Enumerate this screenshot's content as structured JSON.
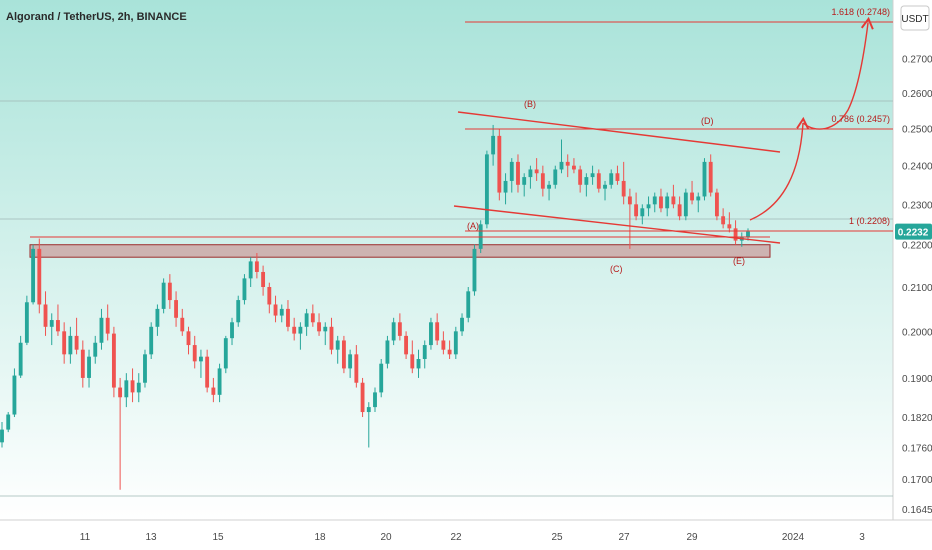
{
  "chart_data": {
    "type": "candlestick",
    "title": "Algorand / TetherUS, 2h, BINANCE",
    "unit": "USDT",
    "ylim": [
      0.1625,
      0.288
    ],
    "y_scale": "log",
    "y_ticks": [
      "0.2700",
      "0.2600",
      "0.2500",
      "0.2400",
      "0.2300",
      "0.2200",
      "0.2100",
      "0.2000",
      "0.1900",
      "0.1820",
      "0.1760",
      "0.1700",
      "0.1645"
    ],
    "x_ticks": [
      "11",
      "13",
      "15",
      "18",
      "20",
      "22",
      "25",
      "27",
      "29",
      "2024",
      "3"
    ],
    "current_price": "0.2232",
    "fib_levels": [
      {
        "label": "1.618 (0.2748)",
        "value": 0.2748
      },
      {
        "label": "0.786 (0.2457)",
        "value": 0.2457
      },
      {
        "label": "1 (0.2208)",
        "value": 0.2208
      }
    ],
    "wave_labels": [
      "(A)",
      "(B)",
      "(C)",
      "(D)",
      "(E)"
    ],
    "support_zone": [
      0.217,
      0.22
    ],
    "colors": {
      "up": "#26a69a",
      "down": "#ef5350",
      "annotation": "#e53935",
      "zone": "#c98a8a",
      "background_top": "#a9e3d9",
      "background_bottom": "#ffffff"
    },
    "candles": [
      [
        0.177,
        0.181,
        0.176,
        0.1795
      ],
      [
        0.1795,
        0.183,
        0.179,
        0.1825
      ],
      [
        0.1825,
        0.192,
        0.182,
        0.1905
      ],
      [
        0.1905,
        0.199,
        0.19,
        0.1975
      ],
      [
        0.1975,
        0.208,
        0.197,
        0.2065
      ],
      [
        0.2065,
        0.22,
        0.206,
        0.219
      ],
      [
        0.219,
        0.2215,
        0.204,
        0.206
      ],
      [
        0.206,
        0.209,
        0.199,
        0.201
      ],
      [
        0.201,
        0.204,
        0.197,
        0.2025
      ],
      [
        0.2025,
        0.206,
        0.199,
        0.2
      ],
      [
        0.2,
        0.202,
        0.193,
        0.195
      ],
      [
        0.195,
        0.201,
        0.193,
        0.199
      ],
      [
        0.199,
        0.203,
        0.195,
        0.196
      ],
      [
        0.196,
        0.198,
        0.188,
        0.19
      ],
      [
        0.19,
        0.196,
        0.188,
        0.1945
      ],
      [
        0.1945,
        0.199,
        0.193,
        0.1975
      ],
      [
        0.1975,
        0.205,
        0.196,
        0.203
      ],
      [
        0.203,
        0.206,
        0.198,
        0.1995
      ],
      [
        0.1995,
        0.201,
        0.186,
        0.188
      ],
      [
        0.188,
        0.19,
        0.168,
        0.186
      ],
      [
        0.186,
        0.191,
        0.184,
        0.1895
      ],
      [
        0.1895,
        0.192,
        0.185,
        0.187
      ],
      [
        0.187,
        0.191,
        0.185,
        0.189
      ],
      [
        0.189,
        0.196,
        0.188,
        0.195
      ],
      [
        0.195,
        0.202,
        0.194,
        0.201
      ],
      [
        0.201,
        0.206,
        0.199,
        0.205
      ],
      [
        0.205,
        0.212,
        0.204,
        0.211
      ],
      [
        0.211,
        0.213,
        0.205,
        0.207
      ],
      [
        0.207,
        0.209,
        0.201,
        0.203
      ],
      [
        0.203,
        0.205,
        0.199,
        0.2
      ],
      [
        0.2,
        0.201,
        0.195,
        0.197
      ],
      [
        0.197,
        0.199,
        0.192,
        0.1935
      ],
      [
        0.1935,
        0.196,
        0.19,
        0.1945
      ],
      [
        0.1945,
        0.196,
        0.187,
        0.188
      ],
      [
        0.188,
        0.19,
        0.185,
        0.1865
      ],
      [
        0.1865,
        0.193,
        0.185,
        0.192
      ],
      [
        0.192,
        0.199,
        0.191,
        0.1985
      ],
      [
        0.1985,
        0.203,
        0.197,
        0.202
      ],
      [
        0.202,
        0.208,
        0.201,
        0.207
      ],
      [
        0.207,
        0.213,
        0.206,
        0.212
      ],
      [
        0.212,
        0.217,
        0.21,
        0.216
      ],
      [
        0.216,
        0.218,
        0.212,
        0.2135
      ],
      [
        0.2135,
        0.215,
        0.208,
        0.21
      ],
      [
        0.21,
        0.211,
        0.204,
        0.206
      ],
      [
        0.206,
        0.208,
        0.202,
        0.2035
      ],
      [
        0.2035,
        0.206,
        0.202,
        0.205
      ],
      [
        0.205,
        0.207,
        0.2,
        0.201
      ],
      [
        0.201,
        0.203,
        0.198,
        0.1995
      ],
      [
        0.1995,
        0.202,
        0.196,
        0.201
      ],
      [
        0.201,
        0.205,
        0.199,
        0.204
      ],
      [
        0.204,
        0.206,
        0.201,
        0.202
      ],
      [
        0.202,
        0.204,
        0.199,
        0.2
      ],
      [
        0.2,
        0.202,
        0.197,
        0.201
      ],
      [
        0.201,
        0.203,
        0.195,
        0.196
      ],
      [
        0.196,
        0.199,
        0.193,
        0.198
      ],
      [
        0.198,
        0.199,
        0.191,
        0.192
      ],
      [
        0.192,
        0.196,
        0.19,
        0.195
      ],
      [
        0.195,
        0.197,
        0.188,
        0.189
      ],
      [
        0.189,
        0.19,
        0.182,
        0.183
      ],
      [
        0.183,
        0.185,
        0.176,
        0.184
      ],
      [
        0.184,
        0.188,
        0.183,
        0.187
      ],
      [
        0.187,
        0.194,
        0.186,
        0.193
      ],
      [
        0.193,
        0.199,
        0.192,
        0.198
      ],
      [
        0.198,
        0.203,
        0.197,
        0.202
      ],
      [
        0.202,
        0.204,
        0.198,
        0.199
      ],
      [
        0.199,
        0.2,
        0.194,
        0.195
      ],
      [
        0.195,
        0.198,
        0.191,
        0.192
      ],
      [
        0.192,
        0.196,
        0.19,
        0.194
      ],
      [
        0.194,
        0.198,
        0.192,
        0.197
      ],
      [
        0.197,
        0.203,
        0.196,
        0.202
      ],
      [
        0.202,
        0.204,
        0.197,
        0.198
      ],
      [
        0.198,
        0.2,
        0.195,
        0.196
      ],
      [
        0.196,
        0.198,
        0.194,
        0.195
      ],
      [
        0.195,
        0.201,
        0.194,
        0.2
      ],
      [
        0.2,
        0.204,
        0.199,
        0.203
      ],
      [
        0.203,
        0.21,
        0.202,
        0.209
      ],
      [
        0.209,
        0.22,
        0.208,
        0.219
      ],
      [
        0.219,
        0.226,
        0.218,
        0.225
      ],
      [
        0.225,
        0.244,
        0.224,
        0.243
      ],
      [
        0.243,
        0.251,
        0.24,
        0.248
      ],
      [
        0.248,
        0.25,
        0.231,
        0.233
      ],
      [
        0.233,
        0.238,
        0.23,
        0.236
      ],
      [
        0.236,
        0.242,
        0.233,
        0.241
      ],
      [
        0.241,
        0.243,
        0.233,
        0.235
      ],
      [
        0.235,
        0.238,
        0.232,
        0.237
      ],
      [
        0.237,
        0.24,
        0.234,
        0.239
      ],
      [
        0.239,
        0.242,
        0.236,
        0.238
      ],
      [
        0.238,
        0.24,
        0.232,
        0.234
      ],
      [
        0.234,
        0.236,
        0.231,
        0.235
      ],
      [
        0.235,
        0.24,
        0.234,
        0.239
      ],
      [
        0.239,
        0.247,
        0.238,
        0.241
      ],
      [
        0.241,
        0.243,
        0.237,
        0.24
      ],
      [
        0.24,
        0.242,
        0.238,
        0.239
      ],
      [
        0.239,
        0.24,
        0.233,
        0.235
      ],
      [
        0.235,
        0.238,
        0.232,
        0.237
      ],
      [
        0.237,
        0.24,
        0.235,
        0.238
      ],
      [
        0.238,
        0.239,
        0.233,
        0.234
      ],
      [
        0.234,
        0.236,
        0.231,
        0.235
      ],
      [
        0.235,
        0.239,
        0.234,
        0.238
      ],
      [
        0.238,
        0.24,
        0.235,
        0.236
      ],
      [
        0.236,
        0.241,
        0.23,
        0.232
      ],
      [
        0.232,
        0.234,
        0.219,
        0.23
      ],
      [
        0.23,
        0.233,
        0.226,
        0.227
      ],
      [
        0.227,
        0.23,
        0.225,
        0.229
      ],
      [
        0.229,
        0.232,
        0.227,
        0.23
      ],
      [
        0.23,
        0.233,
        0.228,
        0.232
      ],
      [
        0.232,
        0.234,
        0.228,
        0.229
      ],
      [
        0.229,
        0.233,
        0.227,
        0.232
      ],
      [
        0.232,
        0.235,
        0.229,
        0.23
      ],
      [
        0.23,
        0.232,
        0.226,
        0.227
      ],
      [
        0.227,
        0.234,
        0.226,
        0.233
      ],
      [
        0.233,
        0.236,
        0.23,
        0.231
      ],
      [
        0.231,
        0.233,
        0.228,
        0.232
      ],
      [
        0.232,
        0.242,
        0.231,
        0.241
      ],
      [
        0.241,
        0.243,
        0.232,
        0.233
      ],
      [
        0.233,
        0.234,
        0.226,
        0.227
      ],
      [
        0.227,
        0.229,
        0.224,
        0.225
      ],
      [
        0.225,
        0.228,
        0.223,
        0.224
      ],
      [
        0.224,
        0.226,
        0.22,
        0.221
      ],
      [
        0.221,
        0.223,
        0.2195,
        0.222
      ],
      [
        0.222,
        0.224,
        0.221,
        0.2232
      ]
    ]
  }
}
